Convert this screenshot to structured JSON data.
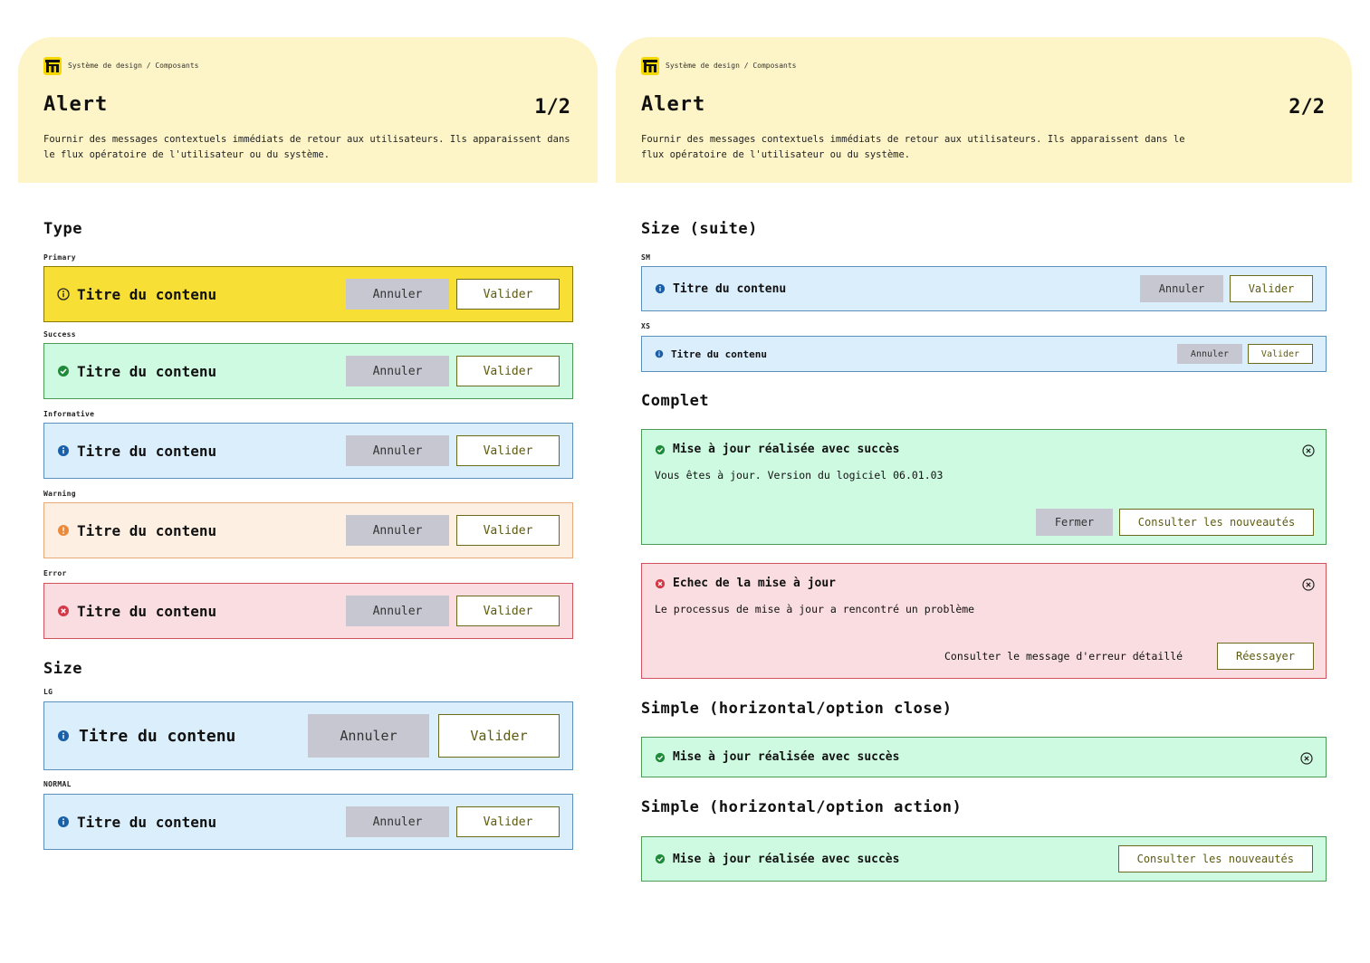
{
  "breadcrumb": "Système de design / Composants",
  "page_title": "Alert",
  "description": "Fournir des messages contextuels immédiats de retour aux utilisateurs. Ils apparaissent dans le flux opératoire de l'utilisateur ou du système.",
  "pages": [
    "1/2",
    "2/2"
  ],
  "colors": {
    "primary": "#f7df35",
    "success": "#cdfae0",
    "informative": "#daeefc",
    "warning": "#fdefe2",
    "error": "#f9dde0",
    "hero": "#fdf5c8"
  },
  "panel1": {
    "type_heading": "Type",
    "types": [
      {
        "label": "Primary",
        "title": "Titre du contenu",
        "cancel": "Annuler",
        "validate": "Valider",
        "icon": "info-outline-icon"
      },
      {
        "label": "Success",
        "title": "Titre du contenu",
        "cancel": "Annuler",
        "validate": "Valider",
        "icon": "check-circle-icon"
      },
      {
        "label": "Informative",
        "title": "Titre du contenu",
        "cancel": "Annuler",
        "validate": "Valider",
        "icon": "info-circle-icon"
      },
      {
        "label": "Warning",
        "title": "Titre du contenu",
        "cancel": "Annuler",
        "validate": "Valider",
        "icon": "warning-circle-icon"
      },
      {
        "label": "Error",
        "title": "Titre du contenu",
        "cancel": "Annuler",
        "validate": "Valider",
        "icon": "error-circle-icon"
      }
    ],
    "size_heading": "Size",
    "sizes": [
      {
        "label": "LG",
        "title": "Titre du contenu",
        "cancel": "Annuler",
        "validate": "Valider"
      },
      {
        "label": "NORMAL",
        "title": "Titre du contenu",
        "cancel": "Annuler",
        "validate": "Valider"
      }
    ]
  },
  "panel2": {
    "size_heading": "Size (suite)",
    "sizes": [
      {
        "label": "SM",
        "title": "Titre du contenu",
        "cancel": "Annuler",
        "validate": "Valider"
      },
      {
        "label": "XS",
        "title": "Titre du contenu",
        "cancel": "Annuler",
        "validate": "Valider"
      }
    ],
    "complete_heading": "Complet",
    "complete_success": {
      "title": "Mise à jour réalisée avec succès",
      "message": "Vous êtes à jour. Version du logiciel 06.01.03",
      "close_button": "Fermer",
      "action_button": "Consulter les nouveautés"
    },
    "complete_error": {
      "title": "Echec de la mise à jour",
      "message": "Le processus de mise à jour a rencontré un problème",
      "link": "Consulter le message d'erreur détaillé",
      "action_button": "Réessayer"
    },
    "simple_close_heading": "Simple (horizontal/option close)",
    "simple_close": {
      "title": "Mise à jour réalisée avec succès"
    },
    "simple_action_heading": "Simple (horizontal/option action)",
    "simple_action": {
      "title": "Mise à jour réalisée avec succès",
      "action_button": "Consulter les nouveautés"
    }
  }
}
